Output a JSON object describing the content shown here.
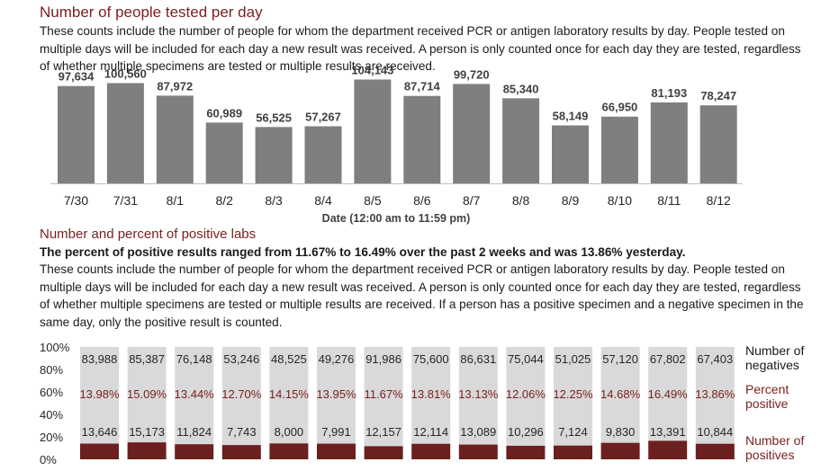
{
  "section1": {
    "title": "Number of people tested per day",
    "description": "These counts include the number of people for whom the department received PCR or antigen laboratory results by day. People tested on multiple days will be included for each day a new result was received. A person is only counted once for each day they are tested, regardless of whether multiple specimens are tested or multiple results are received."
  },
  "section2": {
    "title": "Number and percent of positive labs",
    "summary": "The percent of positive results ranged from 11.67% to 16.49% over the past 2 weeks and was 13.86% yesterday.",
    "description": "These counts include the number of people for whom the department received PCR or antigen laboratory results by day. People tested on multiple days will be included for each day a new result was received. A person is only counted once for each day they are tested, regardless of whether multiple specimens are tested or multiple results are received. If a person has a positive specimen and a negative specimen in the same day, only the positive result is counted."
  },
  "colors": {
    "accent": "#7a1f1f",
    "bar_gray": "#7f7f7f",
    "bar_light": "#d9d9d9",
    "bar_positive": "#6b1f1f"
  },
  "chart_data": [
    {
      "type": "bar",
      "title": "Number of people tested per day",
      "xlabel": "Date (12:00 am to 11:59 pm)",
      "ylabel": "",
      "categories": [
        "7/30",
        "7/31",
        "8/1",
        "8/2",
        "8/3",
        "8/4",
        "8/5",
        "8/6",
        "8/7",
        "8/8",
        "8/9",
        "8/10",
        "8/11",
        "8/12"
      ],
      "values": [
        97634,
        100560,
        87972,
        60989,
        56525,
        57267,
        104143,
        87714,
        99720,
        85340,
        58149,
        66950,
        81193,
        78247
      ],
      "value_labels": [
        "97,634",
        "100,560",
        "87,972",
        "60,989",
        "56,525",
        "57,267",
        "104,143",
        "87,714",
        "99,720",
        "85,340",
        "58,149",
        "66,950",
        "81,193",
        "78,247"
      ],
      "ylim": [
        0,
        110000
      ],
      "grid": false
    },
    {
      "type": "bar",
      "stacked": "percent",
      "title": "Number and percent of positive labs",
      "categories": [
        "7/30",
        "7/31",
        "8/1",
        "8/2",
        "8/3",
        "8/4",
        "8/5",
        "8/6",
        "8/7",
        "8/8",
        "8/9",
        "8/10",
        "8/11",
        "8/12"
      ],
      "ylim": [
        0,
        100
      ],
      "yticks": [
        "0%",
        "20%",
        "40%",
        "60%",
        "80%",
        "100%"
      ],
      "percent_positive": [
        13.98,
        15.09,
        13.44,
        12.7,
        14.15,
        13.95,
        11.67,
        13.81,
        13.13,
        12.06,
        12.25,
        14.68,
        16.49,
        13.86
      ],
      "series": [
        {
          "name": "Number of positives",
          "values": [
            13646,
            15173,
            11824,
            7743,
            8000,
            7991,
            12157,
            12114,
            13089,
            10296,
            7124,
            9830,
            13391,
            10844
          ],
          "labels": [
            "13,646",
            "15,173",
            "11,824",
            "7,743",
            "8,000",
            "7,991",
            "12,157",
            "12,114",
            "13,089",
            "10,296",
            "7,124",
            "9,830",
            "13,391",
            "10,844"
          ]
        },
        {
          "name": "Number of negatives",
          "values": [
            83988,
            85387,
            76148,
            53246,
            48525,
            49276,
            91986,
            75600,
            86631,
            75044,
            51025,
            57120,
            67802,
            67403
          ],
          "labels": [
            "83,988",
            "85,387",
            "76,148",
            "53,246",
            "48,525",
            "49,276",
            "91,986",
            "75,600",
            "86,631",
            "75,044",
            "51,025",
            "57,120",
            "67,802",
            "67,403"
          ]
        }
      ],
      "percent_labels": [
        "13.98%",
        "15.09%",
        "13.44%",
        "12.70%",
        "14.15%",
        "13.95%",
        "11.67%",
        "13.81%",
        "13.13%",
        "12.06%",
        "12.25%",
        "14.68%",
        "16.49%",
        "13.86%"
      ],
      "legend": [
        {
          "lines": [
            "Number of",
            "negatives"
          ],
          "color": "#1a1a1a"
        },
        {
          "lines": [
            "Percent",
            "positive"
          ],
          "color": "#7a1f1f"
        },
        {
          "lines": [
            "Number of",
            "positives"
          ],
          "color": "#7a1f1f"
        }
      ],
      "legend_position": "right"
    }
  ]
}
